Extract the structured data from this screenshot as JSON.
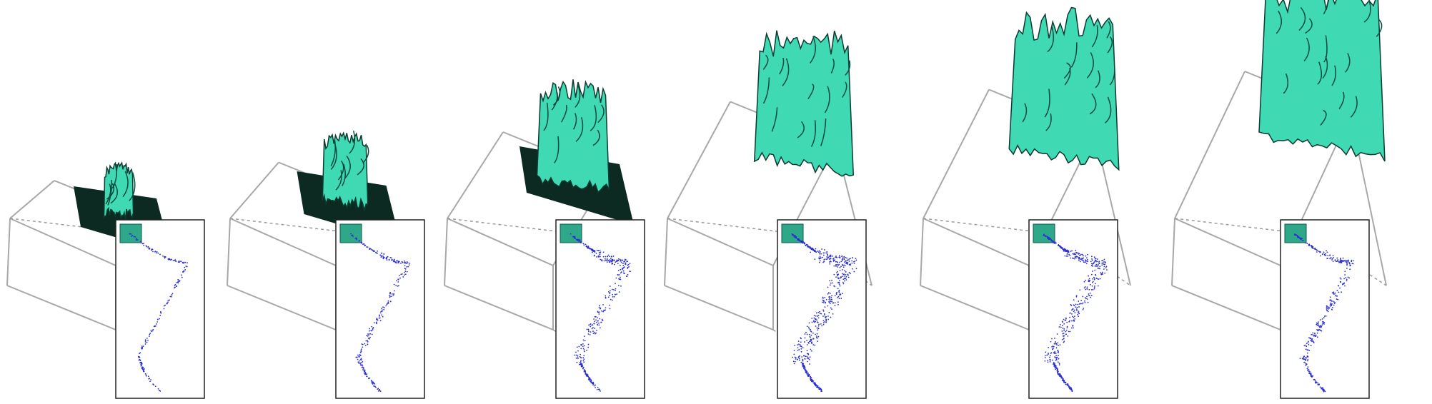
{
  "figure": {
    "description_free": true,
    "colors": {
      "surface": "#3fd9b4",
      "surface_dark": "#0a4a3c",
      "plane": "#0d2a22",
      "box_edge": "#a8a8a8",
      "scatter_points": "#2b2fd0",
      "inset_marker": "#2ea889"
    },
    "panels": [
      {
        "id": 1,
        "growth": 0.1,
        "scatter_spread": 0.15,
        "has_plane": true
      },
      {
        "id": 2,
        "growth": 0.25,
        "scatter_spread": 0.3,
        "has_plane": true
      },
      {
        "id": 3,
        "growth": 0.5,
        "scatter_spread": 0.55,
        "has_plane": true
      },
      {
        "id": 4,
        "growth": 0.75,
        "scatter_spread": 0.95,
        "has_plane": false
      },
      {
        "id": 5,
        "growth": 0.85,
        "scatter_spread": 0.8,
        "has_plane": false
      },
      {
        "id": 6,
        "growth": 1.0,
        "scatter_spread": 0.45,
        "has_plane": false
      }
    ]
  }
}
